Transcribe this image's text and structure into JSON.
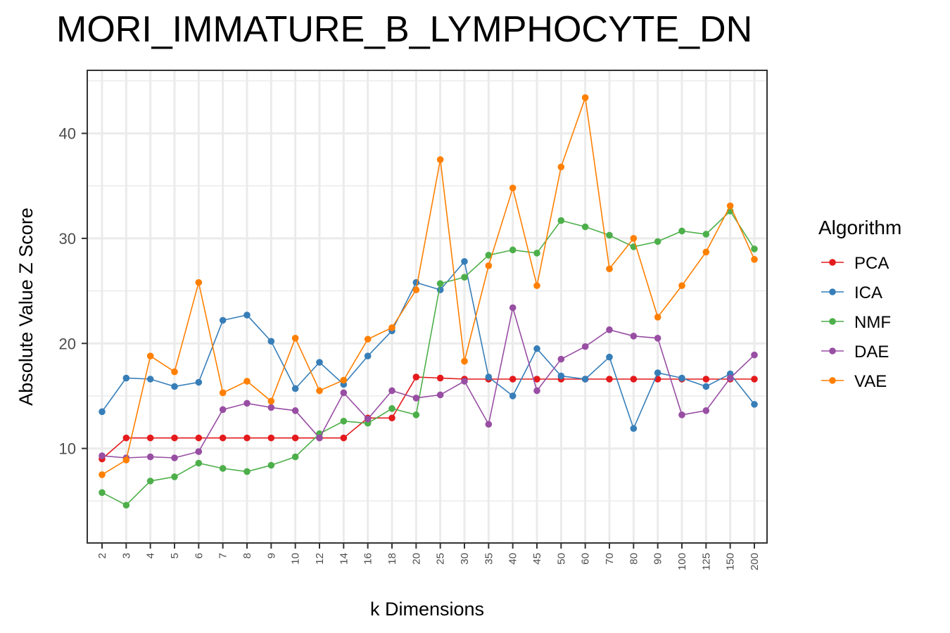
{
  "chart_data": {
    "type": "line",
    "title": "MORI_IMMATURE_B_LYMPHOCYTE_DN",
    "xlabel": "k Dimensions",
    "ylabel": "Absolute Value Z Score",
    "ylim": [
      1,
      46
    ],
    "yticks": [
      10,
      20,
      30,
      40
    ],
    "x_is_categorical": true,
    "grid": true,
    "legend_title": "Algorithm",
    "legend_position": "right",
    "categories": [
      "2",
      "3",
      "4",
      "5",
      "6",
      "7",
      "8",
      "9",
      "10",
      "12",
      "14",
      "16",
      "18",
      "20",
      "25",
      "30",
      "35",
      "40",
      "45",
      "50",
      "60",
      "70",
      "80",
      "90",
      "100",
      "125",
      "150",
      "200"
    ],
    "series": [
      {
        "name": "PCA",
        "color": "#e41a1c",
        "values": [
          9.0,
          11.0,
          11.0,
          11.0,
          11.0,
          11.0,
          11.0,
          11.0,
          11.0,
          11.0,
          11.0,
          12.9,
          12.9,
          16.8,
          16.7,
          16.6,
          16.6,
          16.6,
          16.6,
          16.6,
          16.6,
          16.6,
          16.6,
          16.6,
          16.6,
          16.6,
          16.6,
          16.6
        ]
      },
      {
        "name": "ICA",
        "color": "#377eb8",
        "values": [
          13.5,
          16.7,
          16.6,
          15.9,
          16.3,
          22.2,
          22.7,
          20.2,
          15.7,
          18.2,
          16.1,
          18.8,
          21.2,
          25.8,
          25.1,
          27.8,
          16.8,
          15.0,
          19.5,
          16.9,
          16.6,
          18.7,
          11.9,
          17.2,
          16.7,
          15.9,
          17.1,
          14.2
        ]
      },
      {
        "name": "NMF",
        "color": "#4daf4a",
        "values": [
          5.8,
          4.6,
          6.9,
          7.3,
          8.6,
          8.1,
          7.8,
          8.4,
          9.2,
          11.4,
          12.6,
          12.4,
          13.8,
          13.2,
          25.7,
          26.3,
          28.4,
          28.9,
          28.6,
          31.7,
          31.1,
          30.3,
          29.2,
          29.7,
          30.7,
          30.4,
          32.6,
          29.0
        ]
      },
      {
        "name": "DAE",
        "color": "#984ea3",
        "values": [
          9.3,
          9.1,
          9.2,
          9.1,
          9.7,
          13.7,
          14.3,
          13.9,
          13.6,
          11.0,
          15.3,
          12.8,
          15.5,
          14.8,
          15.1,
          16.4,
          12.3,
          23.4,
          15.5,
          18.5,
          19.7,
          21.3,
          20.7,
          20.5,
          13.2,
          13.6,
          16.7,
          18.9
        ]
      },
      {
        "name": "VAE",
        "color": "#ff7f00",
        "values": [
          7.5,
          8.9,
          18.8,
          17.3,
          25.8,
          15.3,
          16.4,
          14.5,
          20.5,
          15.5,
          16.5,
          20.4,
          21.5,
          25.1,
          37.5,
          18.3,
          27.4,
          34.8,
          25.5,
          36.8,
          43.4,
          27.1,
          30.0,
          22.5,
          25.5,
          28.7,
          33.1,
          28.0
        ]
      }
    ]
  }
}
